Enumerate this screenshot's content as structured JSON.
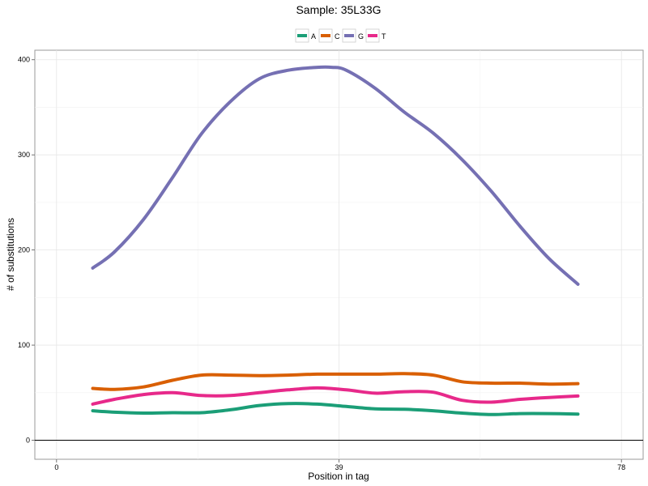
{
  "chart_data": {
    "type": "line",
    "title": "Sample: 35L33G",
    "xlabel": "Position in tag",
    "ylabel": "# of substitutions",
    "xlim": [
      -3,
      81
    ],
    "ylim": [
      -20,
      410
    ],
    "x_ticks": [
      0,
      39,
      78
    ],
    "y_ticks": [
      0,
      100,
      200,
      300,
      400
    ],
    "grid": true,
    "legend_position": "top",
    "reference_line_y": 0,
    "series": [
      {
        "name": "A",
        "color": "#1b9e77",
        "x": [
          5,
          8,
          12,
          16,
          20,
          24,
          28,
          32,
          36,
          40,
          44,
          48,
          52,
          56,
          60,
          64,
          68,
          72
        ],
        "y": [
          31,
          29.5,
          28.5,
          29,
          29,
          32,
          36.5,
          38.5,
          38,
          35.5,
          33,
          32.5,
          31,
          28.5,
          27,
          28,
          28,
          27.5
        ]
      },
      {
        "name": "C",
        "color": "#d95f02",
        "x": [
          5,
          8,
          12,
          16,
          20,
          24,
          28,
          32,
          36,
          40,
          44,
          48,
          52,
          56,
          60,
          64,
          68,
          72
        ],
        "y": [
          54.5,
          53.5,
          56,
          63,
          68.5,
          68.5,
          68,
          68.5,
          69.5,
          69.5,
          69.5,
          70,
          68.5,
          61.5,
          60,
          60,
          59,
          59.5
        ]
      },
      {
        "name": "G",
        "color": "#7570b3",
        "x": [
          5,
          8,
          12,
          16,
          20,
          24,
          28,
          32,
          36,
          38,
          40,
          44,
          48,
          52,
          56,
          60,
          64,
          68,
          72
        ],
        "y": [
          181,
          198,
          232,
          276,
          322,
          356,
          380,
          389,
          392,
          392,
          389,
          370,
          345,
          323,
          295,
          262,
          225,
          191,
          164
        ]
      },
      {
        "name": "T",
        "color": "#e7298a",
        "x": [
          5,
          8,
          12,
          16,
          20,
          24,
          28,
          32,
          36,
          40,
          44,
          48,
          52,
          56,
          60,
          64,
          68,
          72
        ],
        "y": [
          38,
          43,
          48,
          50,
          47,
          47,
          50,
          53,
          55,
          53,
          49.5,
          51,
          50.5,
          42,
          40,
          43,
          45,
          46.5
        ]
      }
    ]
  }
}
